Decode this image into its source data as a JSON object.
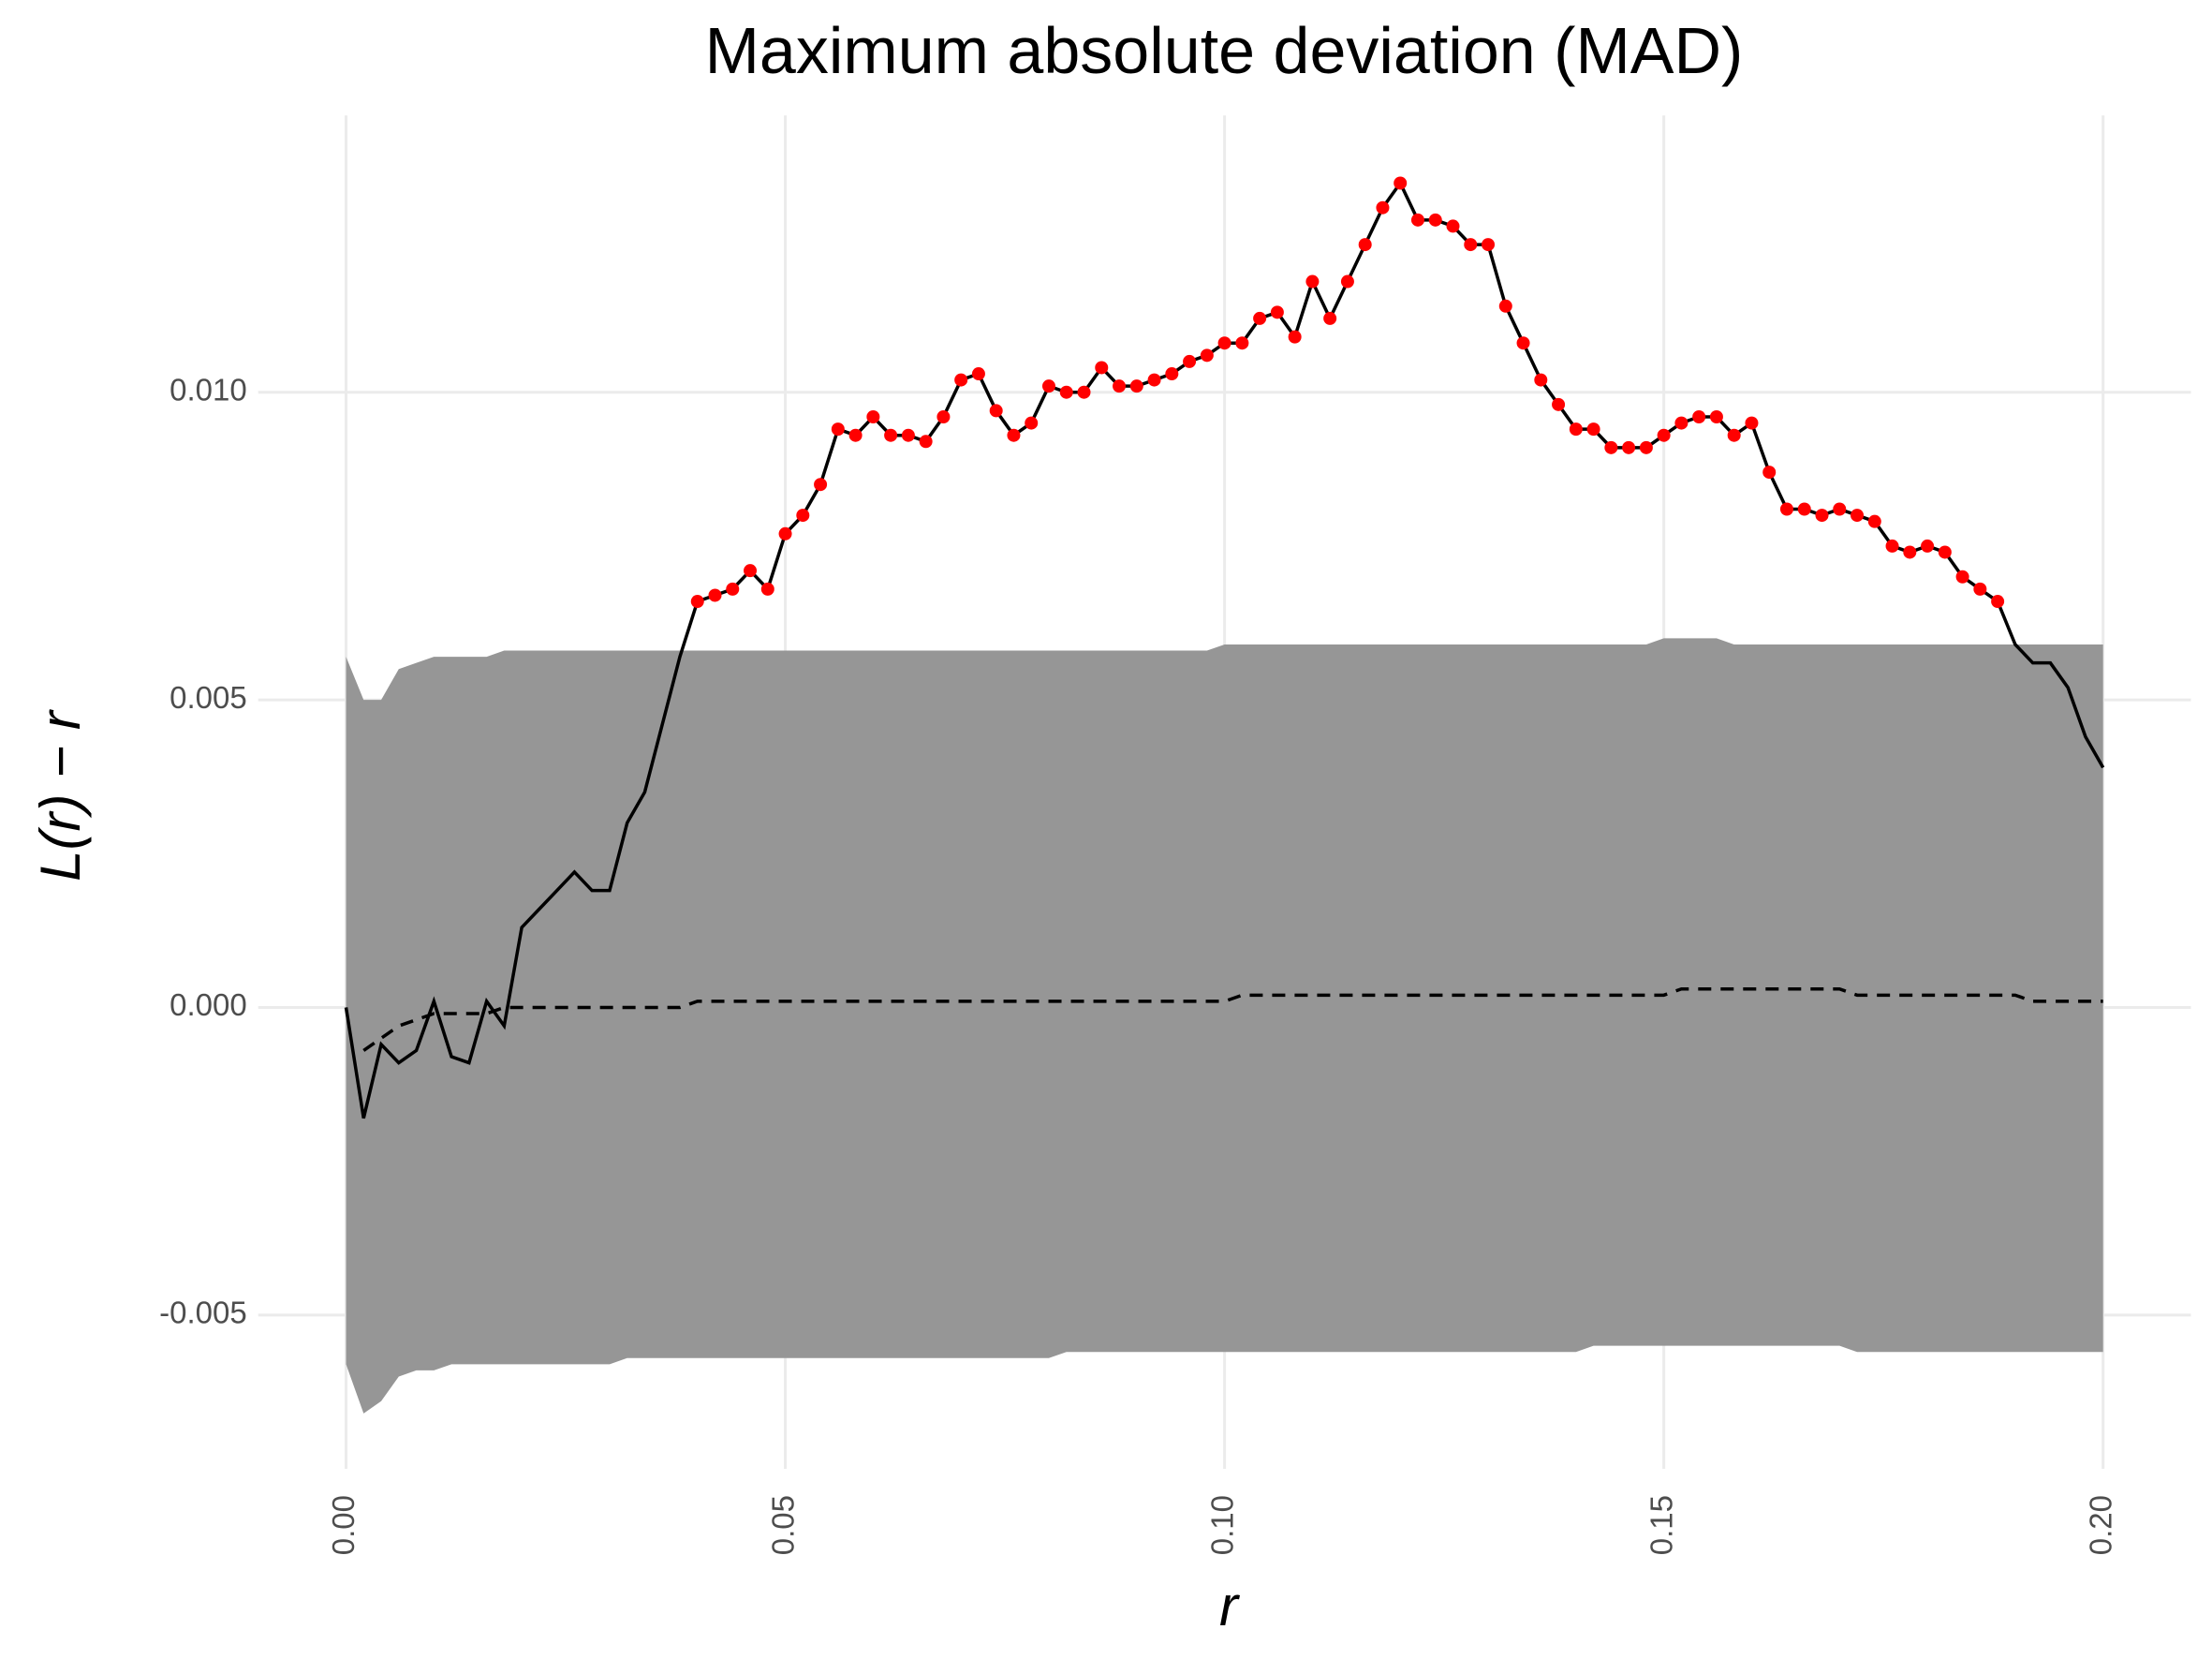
{
  "chart_data": {
    "type": "envelope",
    "title": "Maximum absolute deviation (MAD)",
    "x_label": "r",
    "y_label": "L(r) − r",
    "xlim": [
      -0.01,
      0.21
    ],
    "ylim": [
      -0.0075,
      0.0145
    ],
    "xticks": [
      {
        "value": 0,
        "label": "0.00"
      },
      {
        "value": 0.05,
        "label": "0.05"
      },
      {
        "value": 0.1,
        "label": "0.10"
      },
      {
        "value": 0.15,
        "label": "0.15"
      },
      {
        "value": 0.2,
        "label": "0.20"
      }
    ],
    "yticks": [
      {
        "value": -0.005,
        "label": "-0.005"
      },
      {
        "value": 0,
        "label": "0.000"
      },
      {
        "value": 0.005,
        "label": "0.005"
      },
      {
        "value": 0.01,
        "label": "0.010"
      }
    ],
    "grid": true,
    "envelope_color": "#969696",
    "line_color": "#000000",
    "highlight_color": "#ff0000",
    "x": [
      0,
      0.002,
      0.004,
      0.006,
      0.008,
      0.01,
      0.012,
      0.014,
      0.016,
      0.018,
      0.02,
      0.022,
      0.024,
      0.026,
      0.028,
      0.03,
      0.032,
      0.034,
      0.036,
      0.038,
      0.04,
      0.042,
      0.044,
      0.046,
      0.048,
      0.05,
      0.052,
      0.054,
      0.056,
      0.058,
      0.06,
      0.062,
      0.064,
      0.066,
      0.068,
      0.07,
      0.072,
      0.074,
      0.076,
      0.078,
      0.08,
      0.082,
      0.084,
      0.086,
      0.088,
      0.09,
      0.092,
      0.094,
      0.096,
      0.098,
      0.1,
      0.102,
      0.104,
      0.106,
      0.108,
      0.11,
      0.112,
      0.114,
      0.116,
      0.118,
      0.12,
      0.122,
      0.124,
      0.126,
      0.128,
      0.13,
      0.132,
      0.134,
      0.136,
      0.138,
      0.14,
      0.142,
      0.144,
      0.146,
      0.148,
      0.15,
      0.152,
      0.154,
      0.156,
      0.158,
      0.16,
      0.162,
      0.164,
      0.166,
      0.168,
      0.17,
      0.172,
      0.174,
      0.176,
      0.178,
      0.18,
      0.182,
      0.184,
      0.186,
      0.188,
      0.19,
      0.192,
      0.194,
      0.196,
      0.198,
      0.2
    ],
    "observed": [
      0,
      -0.0018,
      -0.0006,
      -0.0009,
      -0.0007,
      0.0001,
      -0.0008,
      -0.0009,
      0.0001,
      -0.0003,
      0.0013,
      0.0016,
      0.0019,
      0.0022,
      0.0019,
      0.0019,
      0.003,
      0.0035,
      0.0046,
      0.0057,
      0.0066,
      0.0067,
      0.0068,
      0.0071,
      0.0068,
      0.0077,
      0.008,
      0.0085,
      0.0094,
      0.0093,
      0.0096,
      0.0093,
      0.0093,
      0.0092,
      0.0096,
      0.0102,
      0.0103,
      0.0097,
      0.0093,
      0.0095,
      0.0101,
      0.01,
      0.01,
      0.0104,
      0.0101,
      0.0101,
      0.0102,
      0.0103,
      0.0105,
      0.0106,
      0.0108,
      0.0108,
      0.0112,
      0.0113,
      0.0109,
      0.0118,
      0.0112,
      0.0118,
      0.0124,
      0.013,
      0.0134,
      0.0128,
      0.0128,
      0.0127,
      0.0124,
      0.0124,
      0.0114,
      0.0108,
      0.0102,
      0.0098,
      0.0094,
      0.0094,
      0.0091,
      0.0091,
      0.0091,
      0.0093,
      0.0095,
      0.0096,
      0.0096,
      0.0093,
      0.0095,
      0.0087,
      0.0081,
      0.0081,
      0.008,
      0.0081,
      0.008,
      0.0079,
      0.0075,
      0.0074,
      0.0075,
      0.0074,
      0.007,
      0.0068,
      0.0066,
      0.0059,
      0.0056,
      0.0056,
      0.0052,
      0.0044,
      0.0039
    ],
    "theoretical": [
      null,
      -0.0007,
      -0.0005,
      -0.0003,
      -0.0002,
      -0.0001,
      -0.0001,
      -0.0001,
      -0.0001,
      0,
      0,
      0,
      0,
      0,
      0,
      0,
      0,
      0,
      0,
      0,
      0.0001,
      0.0001,
      0.0001,
      0.0001,
      0.0001,
      0.0001,
      0.0001,
      0.0001,
      0.0001,
      0.0001,
      0.0001,
      0.0001,
      0.0001,
      0.0001,
      0.0001,
      0.0001,
      0.0001,
      0.0001,
      0.0001,
      0.0001,
      0.0001,
      0.0001,
      0.0001,
      0.0001,
      0.0001,
      0.0001,
      0.0001,
      0.0001,
      0.0001,
      0.0001,
      0.0001,
      0.0002,
      0.0002,
      0.0002,
      0.0002,
      0.0002,
      0.0002,
      0.0002,
      0.0002,
      0.0002,
      0.0002,
      0.0002,
      0.0002,
      0.0002,
      0.0002,
      0.0002,
      0.0002,
      0.0002,
      0.0002,
      0.0002,
      0.0002,
      0.0002,
      0.0002,
      0.0002,
      0.0002,
      0.0002,
      0.0003,
      0.0003,
      0.0003,
      0.0003,
      0.0003,
      0.0003,
      0.0003,
      0.0003,
      0.0003,
      0.0003,
      0.0002,
      0.0002,
      0.0002,
      0.0002,
      0.0002,
      0.0002,
      0.0002,
      0.0002,
      0.0002,
      0.0002,
      0.0001,
      0.0001,
      0.0001,
      0.0001,
      0.0001
    ],
    "hi": [
      0.0057,
      0.005,
      0.005,
      0.0055,
      0.0056,
      0.0057,
      0.0057,
      0.0057,
      0.0057,
      0.0058,
      0.0058,
      0.0058,
      0.0058,
      0.0058,
      0.0058,
      0.0058,
      0.0058,
      0.0058,
      0.0058,
      0.0058,
      0.0058,
      0.0058,
      0.0058,
      0.0058,
      0.0058,
      0.0058,
      0.0058,
      0.0058,
      0.0058,
      0.0058,
      0.0058,
      0.0058,
      0.0058,
      0.0058,
      0.0058,
      0.0058,
      0.0058,
      0.0058,
      0.0058,
      0.0058,
      0.0058,
      0.0058,
      0.0058,
      0.0058,
      0.0058,
      0.0058,
      0.0058,
      0.0058,
      0.0058,
      0.0058,
      0.0059,
      0.0059,
      0.0059,
      0.0059,
      0.0059,
      0.0059,
      0.0059,
      0.0059,
      0.0059,
      0.0059,
      0.0059,
      0.0059,
      0.0059,
      0.0059,
      0.0059,
      0.0059,
      0.0059,
      0.0059,
      0.0059,
      0.0059,
      0.0059,
      0.0059,
      0.0059,
      0.0059,
      0.0059,
      0.006,
      0.006,
      0.006,
      0.006,
      0.0059,
      0.0059,
      0.0059,
      0.0059,
      0.0059,
      0.0059,
      0.0059,
      0.0059,
      0.0059,
      0.0059,
      0.0059,
      0.0059,
      0.0059,
      0.0059,
      0.0059,
      0.0059,
      0.0059,
      0.0059,
      0.0059,
      0.0059,
      0.0059,
      0.0059
    ],
    "lo": [
      -0.0058,
      -0.0066,
      -0.0064,
      -0.006,
      -0.0059,
      -0.0059,
      -0.0058,
      -0.0058,
      -0.0058,
      -0.0058,
      -0.0058,
      -0.0058,
      -0.0058,
      -0.0058,
      -0.0058,
      -0.0058,
      -0.0057,
      -0.0057,
      -0.0057,
      -0.0057,
      -0.0057,
      -0.0057,
      -0.0057,
      -0.0057,
      -0.0057,
      -0.0057,
      -0.0057,
      -0.0057,
      -0.0057,
      -0.0057,
      -0.0057,
      -0.0057,
      -0.0057,
      -0.0057,
      -0.0057,
      -0.0057,
      -0.0057,
      -0.0057,
      -0.0057,
      -0.0057,
      -0.0057,
      -0.0056,
      -0.0056,
      -0.0056,
      -0.0056,
      -0.0056,
      -0.0056,
      -0.0056,
      -0.0056,
      -0.0056,
      -0.0056,
      -0.0056,
      -0.0056,
      -0.0056,
      -0.0056,
      -0.0056,
      -0.0056,
      -0.0056,
      -0.0056,
      -0.0056,
      -0.0056,
      -0.0056,
      -0.0056,
      -0.0056,
      -0.0056,
      -0.0056,
      -0.0056,
      -0.0056,
      -0.0056,
      -0.0056,
      -0.0056,
      -0.0055,
      -0.0055,
      -0.0055,
      -0.0055,
      -0.0055,
      -0.0055,
      -0.0055,
      -0.0055,
      -0.0055,
      -0.0055,
      -0.0055,
      -0.0055,
      -0.0055,
      -0.0055,
      -0.0055,
      -0.0056,
      -0.0056,
      -0.0056,
      -0.0056,
      -0.0056,
      -0.0056,
      -0.0056,
      -0.0056,
      -0.0056,
      -0.0056,
      -0.0056,
      -0.0056,
      -0.0056,
      -0.0056,
      -0.0056
    ]
  }
}
